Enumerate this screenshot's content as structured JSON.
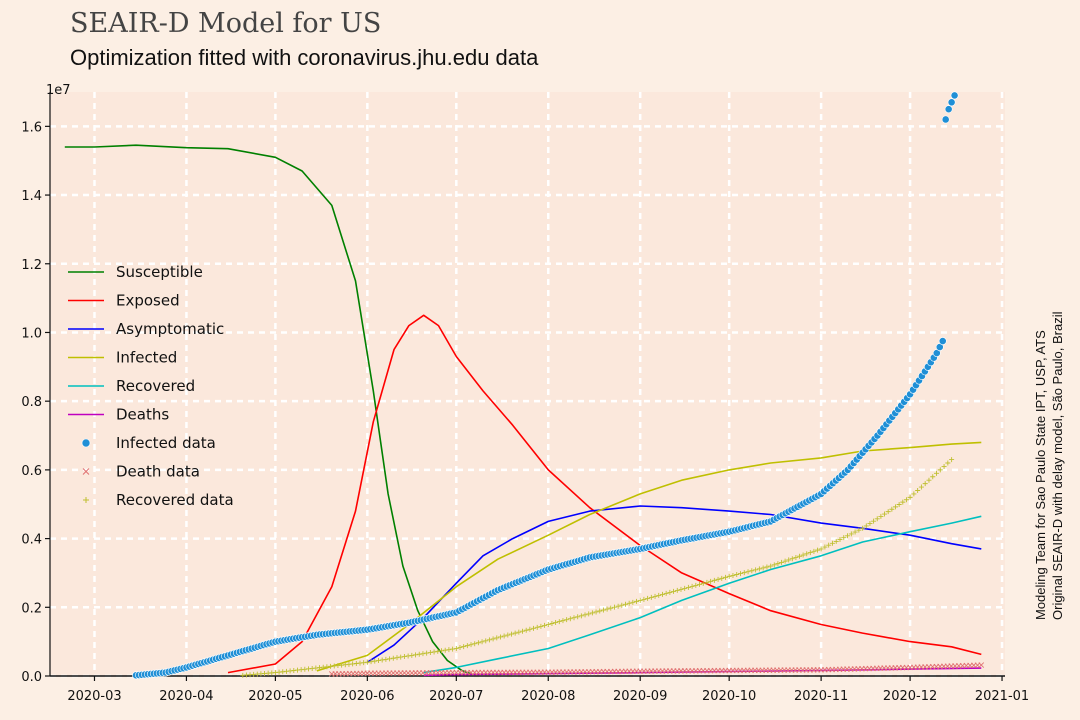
{
  "header": {
    "title": "SEAIR-D Model for US",
    "subtitle": "Optimization fitted with coronavirus.jhu.edu data"
  },
  "credits": {
    "line1": "Modeling Team for Sao Paulo State IPT, USP, ATS",
    "line2": "Original SEAIR-D with delay model, São Paulo, Brazil"
  },
  "chart_data": {
    "type": "line",
    "title": "SEAIR-D Model for US",
    "subtitle": "Optimization fitted with coronavirus.jhu.edu data",
    "xlabel": "",
    "ylabel": "",
    "y_offset_label": "1e7",
    "xlim": [
      "2020-02-15",
      "2021-01-02"
    ],
    "ylim": [
      0,
      17000000.0
    ],
    "grid": true,
    "legend_position": "center-left",
    "x_ticks": [
      "2020-03",
      "2020-04",
      "2020-05",
      "2020-06",
      "2020-07",
      "2020-08",
      "2020-09",
      "2020-10",
      "2020-11",
      "2020-12",
      "2021-01"
    ],
    "y_ticks": [
      0.0,
      0.2,
      0.4,
      0.6,
      0.8,
      1.0,
      1.2,
      1.4,
      1.6
    ],
    "series": [
      {
        "name": "Susceptible",
        "kind": "line",
        "color": "#008000",
        "x": [
          "2020-02-20",
          "2020-03-01",
          "2020-03-15",
          "2020-04-01",
          "2020-04-15",
          "2020-05-01",
          "2020-05-10",
          "2020-05-20",
          "2020-05-28",
          "2020-06-03",
          "2020-06-08",
          "2020-06-13",
          "2020-06-18",
          "2020-06-23",
          "2020-06-28",
          "2020-07-03",
          "2020-07-06"
        ],
        "y": [
          15400000,
          15400000,
          15450000,
          15380000,
          15350000,
          15100000,
          14700000,
          13700000,
          11500000,
          8300000,
          5300000,
          3200000,
          1900000,
          1000000,
          450000,
          150000,
          60000
        ]
      },
      {
        "name": "Exposed",
        "kind": "line",
        "color": "#ff0000",
        "x": [
          "2020-04-15",
          "2020-05-01",
          "2020-05-10",
          "2020-05-20",
          "2020-05-28",
          "2020-06-03",
          "2020-06-10",
          "2020-06-15",
          "2020-06-20",
          "2020-06-25",
          "2020-07-01",
          "2020-07-10",
          "2020-07-20",
          "2020-08-01",
          "2020-08-15",
          "2020-09-01",
          "2020-09-15",
          "2020-10-01",
          "2020-10-15",
          "2020-11-01",
          "2020-11-15",
          "2020-12-01",
          "2020-12-15",
          "2020-12-25"
        ],
        "y": [
          100000,
          350000,
          1000000,
          2600000,
          4800000,
          7400000,
          9500000,
          10200000,
          10500000,
          10200000,
          9300000,
          8300000,
          7300000,
          6000000,
          4900000,
          3800000,
          3000000,
          2400000,
          1900000,
          1500000,
          1250000,
          1000000,
          850000,
          630000
        ]
      },
      {
        "name": "Asymptomatic",
        "kind": "line",
        "color": "#0000ff",
        "x": [
          "2020-06-01",
          "2020-06-10",
          "2020-06-20",
          "2020-07-01",
          "2020-07-10",
          "2020-07-20",
          "2020-08-01",
          "2020-08-15",
          "2020-09-01",
          "2020-09-15",
          "2020-10-01",
          "2020-10-15",
          "2020-11-01",
          "2020-11-15",
          "2020-12-01",
          "2020-12-15",
          "2020-12-25"
        ],
        "y": [
          400000,
          900000,
          1700000,
          2700000,
          3500000,
          4000000,
          4500000,
          4800000,
          4950000,
          4900000,
          4800000,
          4700000,
          4450000,
          4300000,
          4100000,
          3850000,
          3700000
        ]
      },
      {
        "name": "Infected",
        "kind": "line",
        "color": "#bfbf00",
        "x": [
          "2020-05-15",
          "2020-06-01",
          "2020-06-15",
          "2020-07-01",
          "2020-07-15",
          "2020-08-01",
          "2020-08-15",
          "2020-09-01",
          "2020-09-15",
          "2020-10-01",
          "2020-10-15",
          "2020-11-01",
          "2020-11-15",
          "2020-12-01",
          "2020-12-15",
          "2020-12-25"
        ],
        "y": [
          150000,
          600000,
          1500000,
          2600000,
          3400000,
          4100000,
          4700000,
          5300000,
          5700000,
          6000000,
          6200000,
          6350000,
          6550000,
          6650000,
          6750000,
          6800000
        ]
      },
      {
        "name": "Recovered",
        "kind": "line",
        "color": "#00bfbf",
        "x": [
          "2020-06-20",
          "2020-07-01",
          "2020-07-15",
          "2020-08-01",
          "2020-08-15",
          "2020-09-01",
          "2020-09-15",
          "2020-10-01",
          "2020-10-15",
          "2020-11-01",
          "2020-11-15",
          "2020-12-01",
          "2020-12-15",
          "2020-12-25"
        ],
        "y": [
          100000,
          250000,
          500000,
          800000,
          1200000,
          1700000,
          2200000,
          2700000,
          3100000,
          3500000,
          3900000,
          4200000,
          4450000,
          4650000
        ]
      },
      {
        "name": "Deaths",
        "kind": "line",
        "color": "#bf00bf",
        "x": [
          "2020-06-20",
          "2020-07-01",
          "2020-08-01",
          "2020-09-01",
          "2020-10-01",
          "2020-11-01",
          "2020-12-01",
          "2020-12-25"
        ],
        "y": [
          20000,
          40000,
          70000,
          100000,
          130000,
          160000,
          200000,
          230000
        ]
      },
      {
        "name": "Infected data",
        "kind": "markers",
        "marker": "circle",
        "color": "#1f8fd6",
        "x": [
          "2020-03-15",
          "2020-03-25",
          "2020-04-01",
          "2020-04-15",
          "2020-05-01",
          "2020-05-15",
          "2020-06-01",
          "2020-06-15",
          "2020-07-01",
          "2020-07-15",
          "2020-08-01",
          "2020-08-15",
          "2020-09-01",
          "2020-09-15",
          "2020-10-01",
          "2020-10-15",
          "2020-11-01",
          "2020-11-10",
          "2020-11-20",
          "2020-12-01",
          "2020-12-10",
          "2020-12-12"
        ],
        "y": [
          20000,
          100000,
          250000,
          600000,
          1000000,
          1200000,
          1350000,
          1550000,
          1850000,
          2500000,
          3100000,
          3450000,
          3700000,
          3950000,
          4200000,
          4500000,
          5300000,
          6000000,
          7000000,
          8200000,
          9400000,
          9750000
        ]
      },
      {
        "name": "Infected data high",
        "kind": "markers",
        "marker": "circle",
        "color": "#1f8fd6",
        "legend": false,
        "x": [
          "2020-12-13",
          "2020-12-14",
          "2020-12-15",
          "2020-12-16"
        ],
        "y": [
          16200000,
          16500000,
          16700000,
          16900000
        ]
      },
      {
        "name": "Death data",
        "kind": "markers",
        "marker": "x",
        "color": "#e07070",
        "x": [
          "2020-05-20",
          "2020-06-01",
          "2020-07-01",
          "2020-08-01",
          "2020-09-01",
          "2020-10-01",
          "2020-11-01",
          "2020-12-01",
          "2020-12-25"
        ],
        "y": [
          60000,
          80000,
          100000,
          110000,
          140000,
          160000,
          180000,
          250000,
          320000
        ]
      },
      {
        "name": "Recovered data",
        "kind": "markers",
        "marker": "plus",
        "color": "#bfbf30",
        "x": [
          "2020-04-20",
          "2020-05-01",
          "2020-06-01",
          "2020-07-01",
          "2020-08-01",
          "2020-09-01",
          "2020-10-01",
          "2020-10-15",
          "2020-11-01",
          "2020-11-15",
          "2020-12-01",
          "2020-12-15"
        ],
        "y": [
          20000,
          100000,
          400000,
          800000,
          1500000,
          2200000,
          2900000,
          3200000,
          3700000,
          4300000,
          5200000,
          6300000
        ]
      }
    ]
  }
}
